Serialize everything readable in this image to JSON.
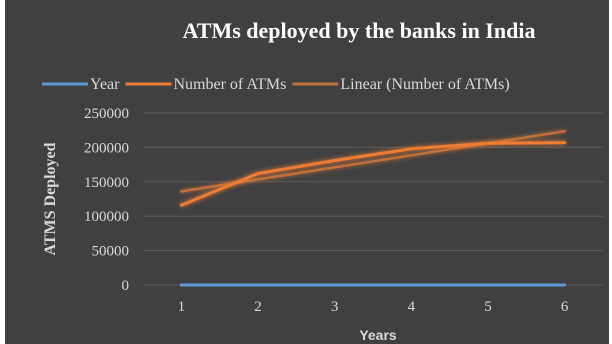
{
  "chart_data": {
    "type": "line",
    "title": "ATMs deployed by the banks in India",
    "xlabel": "Years",
    "ylabel": "ATMS Deployed",
    "categories": [
      "1",
      "2",
      "3",
      "4",
      "5",
      "6"
    ],
    "ylim": [
      0,
      250000
    ],
    "yticks": [
      "0",
      "50000",
      "100000",
      "150000",
      "200000",
      "250000"
    ],
    "grid": true,
    "legend_position": "top",
    "series": [
      {
        "name": "Year",
        "values": [
          1,
          2,
          3,
          4,
          5,
          6
        ],
        "color": "#5b9bd5"
      },
      {
        "name": "Number of ATMs",
        "values": [
          116000,
          162000,
          181000,
          198000,
          206000,
          207000
        ],
        "color": "#ed7d31"
      },
      {
        "name": "Linear (Number of ATMs)",
        "values": [
          136000,
          153500,
          171000,
          188500,
          206000,
          223500
        ],
        "color": "#c0703a"
      }
    ]
  }
}
